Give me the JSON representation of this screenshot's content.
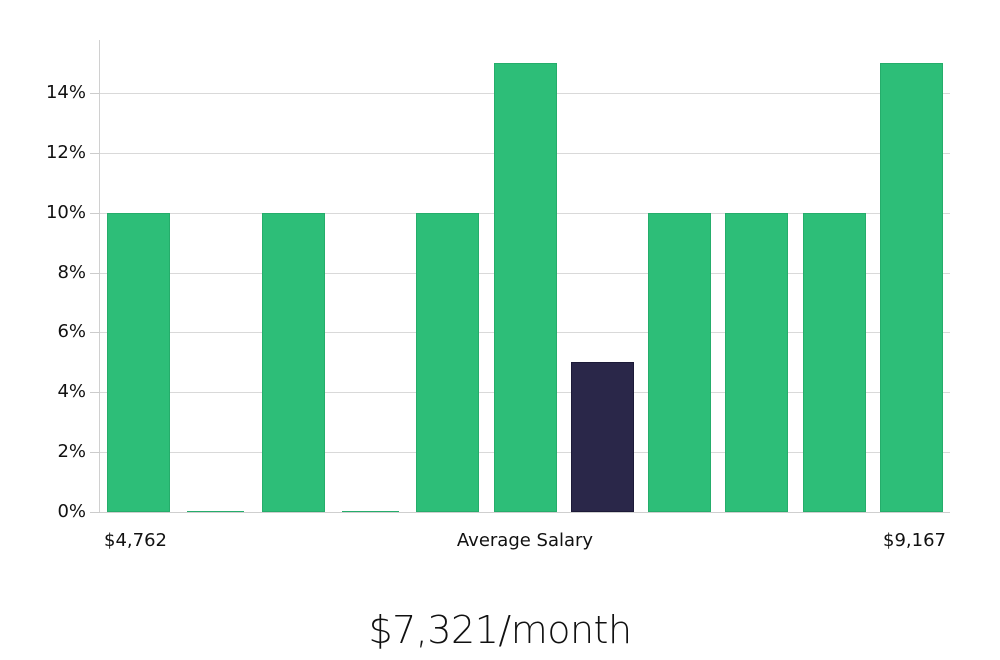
{
  "chart_data": {
    "type": "bar",
    "title": "",
    "xlabel": "Average Salary",
    "ylabel": "",
    "x_range_labels": {
      "min": "$4,762",
      "max": "$9,167"
    },
    "categories": [
      "bin-1",
      "bin-2",
      "bin-3",
      "bin-4",
      "bin-5",
      "bin-6",
      "bin-7",
      "bin-8",
      "bin-9",
      "bin-10",
      "bin-11"
    ],
    "values": [
      10,
      0,
      10,
      0,
      10,
      15,
      5,
      10,
      10,
      10,
      15
    ],
    "highlight_index": 6,
    "ylim": [
      0,
      15.8
    ],
    "yticks": [
      0,
      2,
      4,
      6,
      8,
      10,
      12,
      14
    ],
    "ytick_labels": [
      "0%",
      "2%",
      "4%",
      "6%",
      "8%",
      "10%",
      "12%",
      "14%"
    ],
    "grid": true,
    "legend": null
  },
  "colors": {
    "bar": "#2dbe78",
    "bar_border": "#25ad6b",
    "highlight": "#2a2749",
    "highlight_border": "#1c1a38",
    "grid": "#d9d9d9"
  },
  "labels": {
    "x_min": "$4,762",
    "x_center": "Average Salary",
    "x_max": "$9,167"
  },
  "headline": "$7,321/month"
}
